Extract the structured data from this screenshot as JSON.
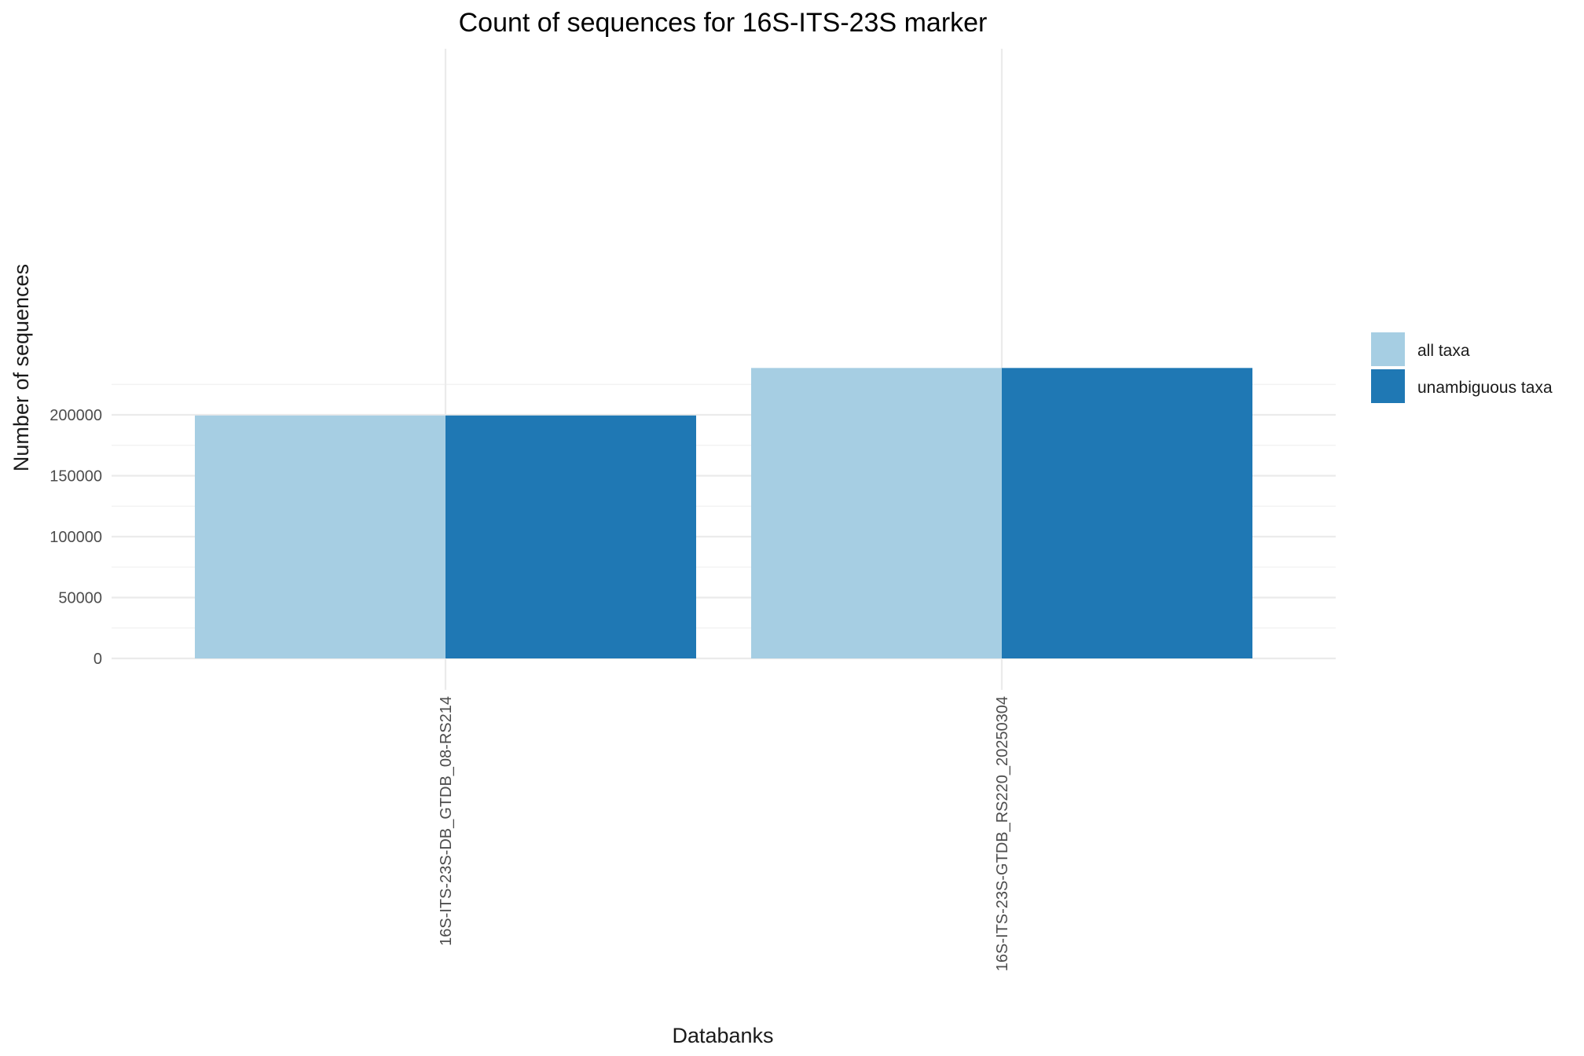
{
  "chart_data": {
    "type": "bar",
    "title": "Count of sequences for 16S-ITS-23S marker",
    "xlabel": "Databanks",
    "ylabel": "Number of sequences",
    "categories": [
      "16S-ITS-23S-DB_GTDB_08-RS214",
      "16S-ITS-23S-GTDB_RS220_20250304"
    ],
    "series": [
      {
        "name": "all taxa",
        "color": "#a6cee3",
        "values": [
          199500,
          238500
        ]
      },
      {
        "name": "unambiguous taxa",
        "color": "#1f78b4",
        "values": [
          199500,
          238500
        ]
      }
    ],
    "ylim": [
      0,
      240000
    ],
    "yticks": [
      0,
      50000,
      100000,
      150000,
      200000
    ],
    "legend_position": "right",
    "grid": true
  }
}
